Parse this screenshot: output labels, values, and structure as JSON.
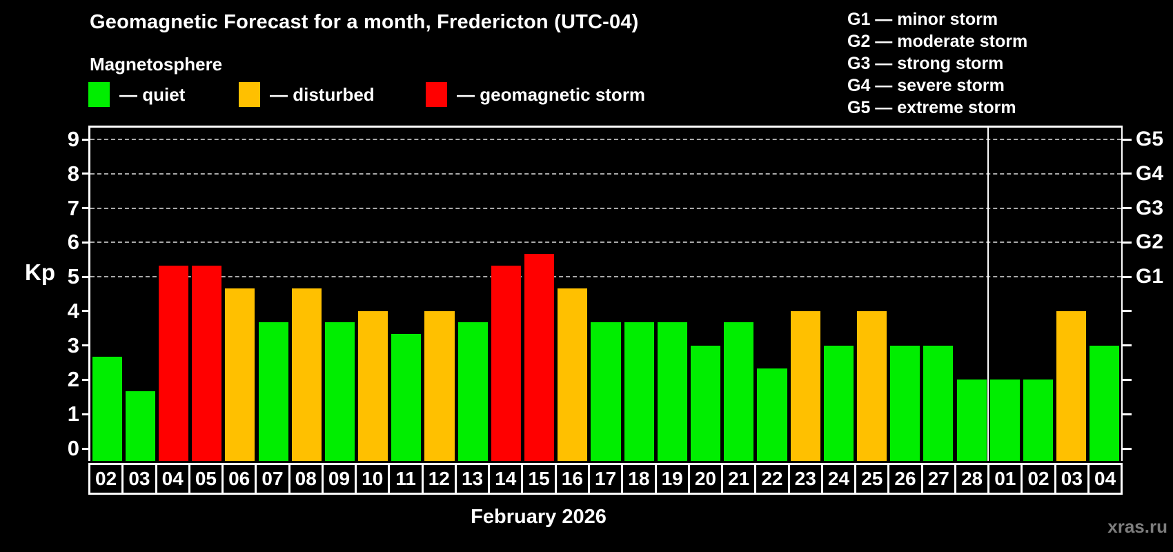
{
  "header": {
    "title": "Geomagnetic Forecast for a month, Fredericton (UTC-04)",
    "subtitle": "Magnetosphere"
  },
  "legend": {
    "items": [
      {
        "name": "quiet",
        "label": "— quiet",
        "color": "#00ee00"
      },
      {
        "name": "disturbed",
        "label": "— disturbed",
        "color": "#ffc000"
      },
      {
        "name": "storm",
        "label": "— geomagnetic storm",
        "color": "#ff0000"
      }
    ]
  },
  "g_legend": {
    "items": [
      "G1 — minor storm",
      "G2 — moderate storm",
      "G3 — strong storm",
      "G4 — severe storm",
      "G5 — extreme storm"
    ]
  },
  "chart_data": {
    "type": "bar",
    "title": "Geomagnetic Forecast for a month, Fredericton (UTC-04)",
    "xlabel": "February 2026",
    "ylabel": "Kp",
    "ylim": [
      0,
      9
    ],
    "yticks": [
      0,
      1,
      2,
      3,
      4,
      5,
      6,
      7,
      8,
      9
    ],
    "gridlines_at": [
      5,
      6,
      7,
      8,
      9
    ],
    "grid": "dashed horizontal at storm levels only",
    "legend_position": "top-left",
    "right_axis": [
      {
        "kp": 5,
        "label": "G1"
      },
      {
        "kp": 6,
        "label": "G2"
      },
      {
        "kp": 7,
        "label": "G3"
      },
      {
        "kp": 8,
        "label": "G4"
      },
      {
        "kp": 9,
        "label": "G5"
      }
    ],
    "categories": [
      "02",
      "03",
      "04",
      "05",
      "06",
      "07",
      "08",
      "09",
      "10",
      "11",
      "12",
      "13",
      "14",
      "15",
      "16",
      "17",
      "18",
      "19",
      "20",
      "21",
      "22",
      "23",
      "24",
      "25",
      "26",
      "27",
      "28",
      "01",
      "02",
      "03",
      "04"
    ],
    "values": [
      2.67,
      1.67,
      5.33,
      5.33,
      4.67,
      3.67,
      4.67,
      3.67,
      4,
      3.33,
      4,
      3.67,
      5.33,
      5.67,
      4.67,
      3.67,
      3.67,
      3.67,
      3,
      3.67,
      2.33,
      4,
      3,
      4,
      3,
      3,
      2,
      2,
      2,
      4,
      3
    ],
    "statuses": [
      "quiet",
      "quiet",
      "storm",
      "storm",
      "disturbed",
      "quiet",
      "disturbed",
      "quiet",
      "disturbed",
      "quiet",
      "disturbed",
      "quiet",
      "storm",
      "storm",
      "disturbed",
      "quiet",
      "quiet",
      "quiet",
      "quiet",
      "quiet",
      "quiet",
      "disturbed",
      "quiet",
      "disturbed",
      "quiet",
      "quiet",
      "quiet",
      "quiet",
      "quiet",
      "disturbed",
      "quiet"
    ],
    "status_colors": {
      "quiet": "#00ee00",
      "disturbed": "#ffc000",
      "storm": "#ff0000"
    },
    "month_boundary_after_index": 26,
    "gridline_color": "#aaaaaa"
  },
  "footer": {
    "xlabel": "February 2026",
    "watermark": "xras.ru"
  }
}
